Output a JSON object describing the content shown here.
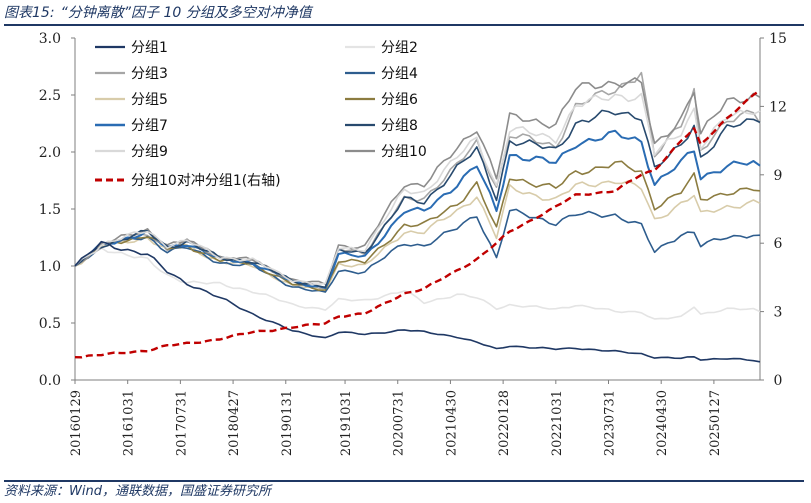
{
  "header": {
    "figure_label": "图表15:",
    "title": "“分钟离散”因子 10 分组及多空对冲净值"
  },
  "footer": {
    "source": "资料来源：Wind，通联数据，国盛证券研究所"
  },
  "chart_data": {
    "type": "line",
    "title": "“分钟离散”因子 10 分组及多空对冲净值",
    "x_labels": [
      "20160129",
      "20161031",
      "20170731",
      "20180427",
      "20190131",
      "20191031",
      "20200731",
      "20210430",
      "20220128",
      "20221031",
      "20230731",
      "20240430",
      "20250127"
    ],
    "left_axis": {
      "min": 0,
      "max": 3,
      "ticks": [
        "0.0",
        "0.5",
        "1.0",
        "1.5",
        "2.0",
        "2.5",
        "3.0"
      ]
    },
    "right_axis": {
      "min": 0,
      "max": 15,
      "ticks": [
        "0",
        "3",
        "6",
        "9",
        "12",
        "15"
      ]
    },
    "anchors": [
      0,
      4,
      11,
      14,
      17,
      22,
      27,
      33,
      38,
      40,
      44,
      50,
      53,
      58,
      61,
      64,
      66,
      73,
      76,
      82,
      86,
      88,
      92,
      94,
      95,
      99,
      103,
      104
    ],
    "series": [
      {
        "name": "分组1",
        "axis": "left",
        "color": "#1f3864",
        "width": 1.6,
        "dash": "",
        "values": [
          1.0,
          1.2,
          1.1,
          0.95,
          0.85,
          0.72,
          0.58,
          0.43,
          0.37,
          0.42,
          0.4,
          0.44,
          0.42,
          0.38,
          0.33,
          0.27,
          0.3,
          0.27,
          0.28,
          0.25,
          0.23,
          0.2,
          0.19,
          0.2,
          0.18,
          0.19,
          0.17,
          0.16
        ]
      },
      {
        "name": "分组2",
        "axis": "left",
        "color": "#e4e4e4",
        "width": 1.6,
        "dash": "",
        "values": [
          1.0,
          1.16,
          1.05,
          0.92,
          0.86,
          0.84,
          0.78,
          0.66,
          0.62,
          0.7,
          0.7,
          0.78,
          0.68,
          0.75,
          0.72,
          0.63,
          0.66,
          0.62,
          0.66,
          0.6,
          0.6,
          0.53,
          0.55,
          0.65,
          0.58,
          0.62,
          0.62,
          0.6
        ]
      },
      {
        "name": "分组3",
        "axis": "left",
        "color": "#a6a6a6",
        "width": 1.6,
        "dash": "",
        "values": [
          1.0,
          1.18,
          1.28,
          1.15,
          1.22,
          1.08,
          1.05,
          0.85,
          0.8,
          1.15,
          1.12,
          1.58,
          1.6,
          1.88,
          2.08,
          1.7,
          2.15,
          2.05,
          2.4,
          2.55,
          2.7,
          1.95,
          2.25,
          2.55,
          2.02,
          2.25,
          2.38,
          2.25
        ]
      },
      {
        "name": "分组4",
        "axis": "left",
        "color": "#2e5d8e",
        "width": 1.6,
        "dash": "",
        "values": [
          1.0,
          1.18,
          1.26,
          1.13,
          1.16,
          1.03,
          1.0,
          0.82,
          0.76,
          0.96,
          0.95,
          1.2,
          1.18,
          1.33,
          1.45,
          1.07,
          1.48,
          1.38,
          1.45,
          1.45,
          1.35,
          1.12,
          1.28,
          1.3,
          1.18,
          1.25,
          1.28,
          1.27
        ]
      },
      {
        "name": "分组5",
        "axis": "left",
        "color": "#d8ccaa",
        "width": 1.6,
        "dash": "",
        "values": [
          1.0,
          1.17,
          1.25,
          1.14,
          1.17,
          1.04,
          1.0,
          0.83,
          0.78,
          1.02,
          1.0,
          1.3,
          1.3,
          1.48,
          1.62,
          1.25,
          1.68,
          1.58,
          1.7,
          1.75,
          1.68,
          1.4,
          1.55,
          1.62,
          1.45,
          1.52,
          1.56,
          1.55
        ]
      },
      {
        "name": "分组6",
        "axis": "left",
        "color": "#8c7c40",
        "width": 1.6,
        "dash": "",
        "values": [
          1.0,
          1.18,
          1.27,
          1.15,
          1.18,
          1.05,
          1.02,
          0.84,
          0.79,
          1.05,
          1.03,
          1.36,
          1.36,
          1.55,
          1.72,
          1.32,
          1.78,
          1.68,
          1.82,
          1.9,
          1.82,
          1.52,
          1.65,
          1.78,
          1.58,
          1.65,
          1.67,
          1.66
        ]
      },
      {
        "name": "分组7",
        "axis": "left",
        "color": "#2a6cb3",
        "width": 2.0,
        "dash": "",
        "values": [
          1.0,
          1.19,
          1.29,
          1.16,
          1.2,
          1.06,
          1.03,
          0.86,
          0.81,
          1.1,
          1.08,
          1.48,
          1.48,
          1.72,
          1.88,
          1.48,
          1.98,
          1.9,
          2.08,
          2.15,
          2.1,
          1.72,
          1.9,
          2.02,
          1.78,
          1.88,
          1.9,
          1.88
        ]
      },
      {
        "name": "分组8",
        "axis": "left",
        "color": "#284a6e",
        "width": 1.6,
        "dash": "",
        "values": [
          1.0,
          1.18,
          1.3,
          1.17,
          1.21,
          1.07,
          1.04,
          0.87,
          0.82,
          1.13,
          1.12,
          1.58,
          1.56,
          1.86,
          2.02,
          1.6,
          2.1,
          2.02,
          2.25,
          2.35,
          2.32,
          1.85,
          2.05,
          2.25,
          1.95,
          2.2,
          2.28,
          2.26
        ]
      },
      {
        "name": "分组9",
        "axis": "left",
        "color": "#d9d9d9",
        "width": 1.6,
        "dash": "",
        "values": [
          1.0,
          1.19,
          1.31,
          1.18,
          1.22,
          1.08,
          1.05,
          0.88,
          0.83,
          1.16,
          1.15,
          1.66,
          1.65,
          1.95,
          2.12,
          1.7,
          2.2,
          2.12,
          2.4,
          2.5,
          2.48,
          1.98,
          2.18,
          2.38,
          2.05,
          2.3,
          2.38,
          2.36
        ]
      },
      {
        "name": "分组10",
        "axis": "left",
        "color": "#8c8c8c",
        "width": 1.6,
        "dash": "",
        "values": [
          1.0,
          1.19,
          1.32,
          1.18,
          1.22,
          1.08,
          1.05,
          0.88,
          0.84,
          1.18,
          1.17,
          1.72,
          1.72,
          2.02,
          2.22,
          1.78,
          2.3,
          2.25,
          2.55,
          2.62,
          2.6,
          2.05,
          2.3,
          2.55,
          2.15,
          2.45,
          2.5,
          2.48
        ]
      },
      {
        "name": "分组10对冲分组1(右轴)",
        "axis": "right",
        "color": "#c00000",
        "width": 2.4,
        "dash": "7,4",
        "values": [
          1.0,
          1.1,
          1.3,
          1.5,
          1.6,
          1.8,
          2.1,
          2.3,
          2.5,
          2.8,
          2.9,
          3.8,
          4.0,
          4.8,
          5.3,
          6.0,
          6.5,
          7.6,
          8.1,
          8.3,
          9.0,
          9.2,
          10.5,
          11.0,
          10.3,
          11.5,
          12.5,
          12.7
        ]
      }
    ]
  }
}
